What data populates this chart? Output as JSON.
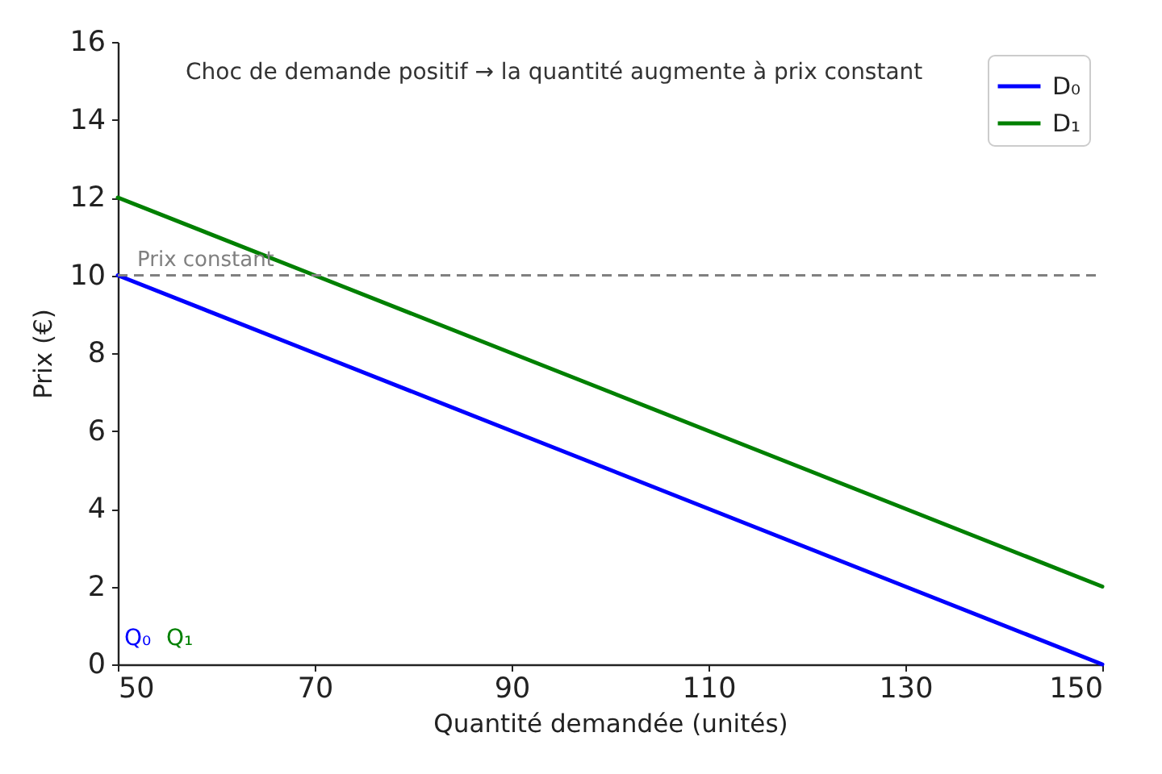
{
  "chart_data": {
    "type": "line",
    "xlabel": "Quantité demandée (unités)",
    "ylabel": "Prix (€)",
    "x": [
      50,
      70,
      90,
      110,
      130,
      150
    ],
    "series": [
      {
        "name": "D₀",
        "color": "#0000ff",
        "values": [
          10,
          8,
          6,
          4,
          2,
          0
        ]
      },
      {
        "name": "D₁",
        "color": "#008000",
        "values": [
          12,
          10,
          8,
          6,
          4,
          2
        ]
      }
    ],
    "xlim": [
      50,
      150
    ],
    "ylim": [
      0,
      16
    ],
    "xticks": [
      50,
      70,
      90,
      110,
      130,
      150
    ],
    "yticks": [
      0,
      2,
      4,
      6,
      8,
      10,
      12,
      14,
      16
    ],
    "ref_lines": [
      {
        "axis": "y",
        "value": 10,
        "label": "Prix constant",
        "color": "#808080",
        "line_style": "dashed"
      }
    ],
    "annotations": [
      "Choc de demande positif → la quantité augmente à prix constant",
      "Q₀",
      "Q₁"
    ],
    "legend": "top right",
    "grid": false
  }
}
